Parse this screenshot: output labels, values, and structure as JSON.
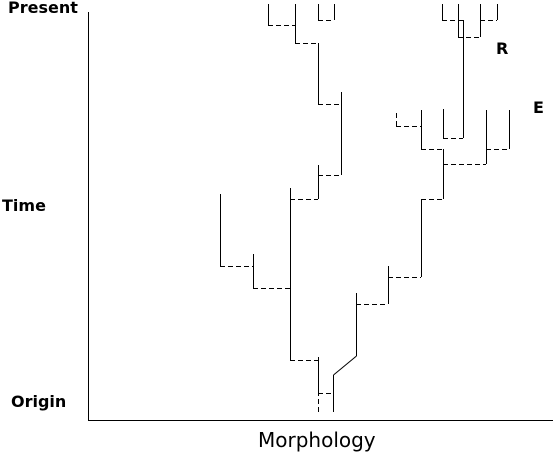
{
  "labels": {
    "present": "Present",
    "time": "Time",
    "origin": "Origin",
    "x_axis": "Morphology",
    "clade_r": "R",
    "clade_e": "E"
  },
  "colors": {
    "line": "#000000",
    "background": "#ffffff"
  }
}
